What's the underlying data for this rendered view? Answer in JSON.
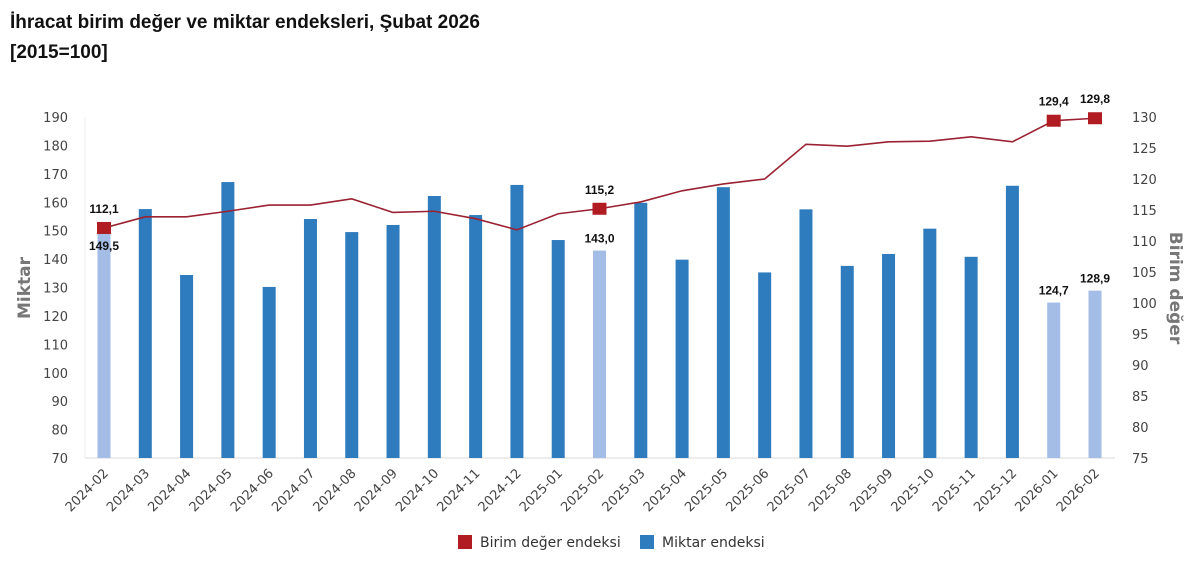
{
  "title": "İhracat birim değer ve miktar endeksleri, Şubat 2026",
  "subtitle": "[2015=100]",
  "chart_data": {
    "type": "bar+line",
    "categories": [
      "2024-02",
      "2024-03",
      "2024-04",
      "2024-05",
      "2024-06",
      "2024-07",
      "2024-08",
      "2024-09",
      "2024-10",
      "2024-11",
      "2024-12",
      "2025-01",
      "2025-02",
      "2025-03",
      "2025-04",
      "2025-05",
      "2025-06",
      "2025-07",
      "2025-08",
      "2025-09",
      "2025-10",
      "2025-11",
      "2025-12",
      "2026-01",
      "2026-02"
    ],
    "series": [
      {
        "name": "Miktar endeksi",
        "type": "bar",
        "axis": "left",
        "color": "#2e7bbd",
        "highlight_color": "#a3bde6",
        "values": [
          149.5,
          157.6,
          134.4,
          167.1,
          130.2,
          154.1,
          149.5,
          152.0,
          162.2,
          155.5,
          166.1,
          146.7,
          143.0,
          159.8,
          139.8,
          165.3,
          135.3,
          157.5,
          137.6,
          141.8,
          150.7,
          140.8,
          165.8,
          124.7,
          128.9
        ],
        "highlighted": [
          "2024-02",
          "2025-02",
          "2026-01",
          "2026-02"
        ],
        "data_labels": {
          "2024-02": "149,5",
          "2025-02": "143,0",
          "2026-01": "124,7",
          "2026-02": "128,9"
        }
      },
      {
        "name": "Birim değer endeksi",
        "type": "line",
        "axis": "right",
        "color": "#9b2232",
        "marker_color": "#b01c22",
        "values": [
          112.1,
          113.9,
          113.9,
          114.8,
          115.8,
          115.8,
          116.8,
          114.6,
          114.8,
          113.6,
          111.8,
          114.4,
          115.2,
          116.3,
          118.1,
          119.2,
          120.0,
          125.6,
          125.3,
          126.0,
          126.1,
          126.8,
          126.0,
          129.4,
          129.8
        ],
        "markers": [
          "2024-02",
          "2025-02",
          "2026-01",
          "2026-02"
        ],
        "data_labels": {
          "2024-02": "112,1",
          "2025-02": "115,2",
          "2026-01": "129,4",
          "2026-02": "129,8"
        }
      }
    ],
    "ylabel": "Miktar",
    "ylim": [
      70,
      190
    ],
    "yticks": [
      70,
      80,
      90,
      100,
      110,
      120,
      130,
      140,
      150,
      160,
      170,
      180,
      190
    ],
    "y2label": "Birim değer",
    "y2lim": [
      75,
      130
    ],
    "y2ticks": [
      75,
      80,
      85,
      90,
      95,
      100,
      105,
      110,
      115,
      120,
      125,
      130
    ],
    "grid": false,
    "legend": "bottom"
  }
}
